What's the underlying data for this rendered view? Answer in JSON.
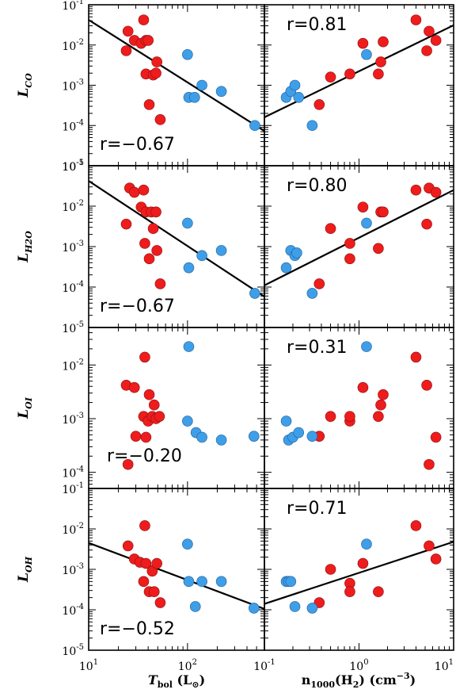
{
  "chart_data": {
    "type": "scatter",
    "layout": "4 rows x 2 columns",
    "colors": {
      "red": "#ee1c1c",
      "blue": "#3f9ee8",
      "line": "#000000"
    },
    "xlabels": {
      "left": {
        "main": "T",
        "sub": "bol",
        "unit": "(L",
        "sun": "⊙",
        "close": ")"
      },
      "right": {
        "main": "n",
        "sub": "1000",
        "mid": "(H",
        "sub2": "2",
        "unit": ") (cm",
        "sup": "−3",
        "close": ")"
      }
    },
    "xaxis": {
      "left": {
        "range": [
          10,
          600
        ],
        "ticks": [
          {
            "value": 10,
            "base": "10",
            "exp": "1"
          },
          {
            "value": 100,
            "base": "10",
            "exp": "2"
          }
        ]
      },
      "right": {
        "range": [
          0.1,
          10
        ],
        "ticks": [
          {
            "value": 0.1,
            "base": "10",
            "exp": "-1"
          },
          {
            "value": 1,
            "base": "10",
            "exp": "0"
          },
          {
            "value": 10,
            "base": "10",
            "exp": "1"
          }
        ]
      }
    },
    "panels": [
      {
        "id": "co",
        "ylabel": {
          "main": "L",
          "sub": "CO"
        },
        "ylim": [
          1e-05,
          0.1
        ],
        "yticks": [
          {
            "value": 0.1,
            "base": "10",
            "exp": "-1"
          },
          {
            "value": 0.01,
            "base": "10",
            "exp": "-2"
          },
          {
            "value": 0.001,
            "base": "10",
            "exp": "-3"
          },
          {
            "value": 0.0001,
            "base": "10",
            "exp": "-4"
          },
          {
            "value": 1e-05,
            "base": "10",
            "exp": "-5"
          }
        ],
        "left": {
          "corr": "r=−0.67",
          "fit": [
            [
              10,
              0.042
            ],
            [
              600,
              7.3e-05
            ]
          ],
          "red": [
            [
              24,
              0.0072
            ],
            [
              25,
              0.022
            ],
            [
              29,
              0.013
            ],
            [
              34,
              0.011
            ],
            [
              36,
              0.042
            ],
            [
              38,
              0.013
            ],
            [
              38,
              0.0019
            ],
            [
              40,
              0.013
            ],
            [
              41,
              0.00033
            ],
            [
              45,
              0.0018
            ],
            [
              48,
              0.002
            ],
            [
              49,
              0.0038
            ],
            [
              53,
              0.00014
            ]
          ],
          "blue": [
            [
              100,
              0.0058
            ],
            [
              103,
              0.0005
            ],
            [
              118,
              0.0005
            ],
            [
              140,
              0.001
            ],
            [
              220,
              0.0007
            ],
            [
              480,
              0.0001
            ]
          ]
        },
        "right": {
          "corr": "r=0.81",
          "fit": [
            [
              0.1,
              0.00016
            ],
            [
              10,
              0.031
            ]
          ],
          "red": [
            [
              0.38,
              0.00033
            ],
            [
              0.5,
              0.0016
            ],
            [
              0.8,
              0.0019
            ],
            [
              1.1,
              0.011
            ],
            [
              1.6,
              0.0019
            ],
            [
              1.7,
              0.0038
            ],
            [
              1.8,
              0.012
            ],
            [
              4.0,
              0.042
            ],
            [
              5.2,
              0.0072
            ],
            [
              5.5,
              0.022
            ],
            [
              6.5,
              0.013
            ]
          ],
          "blue": [
            [
              0.17,
              0.0005
            ],
            [
              0.19,
              0.0007
            ],
            [
              0.21,
              0.001
            ],
            [
              0.23,
              0.0005
            ],
            [
              0.32,
              0.0001
            ],
            [
              1.2,
              0.0058
            ]
          ]
        }
      },
      {
        "id": "h2o",
        "ylabel": {
          "main": "L",
          "sub": "H2O"
        },
        "ylim": [
          1e-05,
          0.1
        ],
        "yticks": [
          {
            "value": 0.1,
            "base": "10",
            "exp": "-1"
          },
          {
            "value": 0.01,
            "base": "10",
            "exp": "-2"
          },
          {
            "value": 0.001,
            "base": "10",
            "exp": "-3"
          },
          {
            "value": 0.0001,
            "base": "10",
            "exp": "-4"
          },
          {
            "value": 1e-05,
            "base": "10",
            "exp": "-5"
          }
        ],
        "left": {
          "corr": "r=−0.67",
          "fit": [
            [
              10,
              0.042
            ],
            [
              600,
              5.8e-05
            ]
          ],
          "red": [
            [
              24,
              0.0036
            ],
            [
              26,
              0.028
            ],
            [
              29,
              0.022
            ],
            [
              34,
              0.0095
            ],
            [
              36,
              0.025
            ],
            [
              37,
              0.0012
            ],
            [
              38,
              0.0072
            ],
            [
              41,
              0.0005
            ],
            [
              43,
              0.0072
            ],
            [
              45,
              0.0028
            ],
            [
              48,
              0.0072
            ],
            [
              49,
              0.0008
            ],
            [
              53,
              0.00012
            ]
          ],
          "blue": [
            [
              100,
              0.0038
            ],
            [
              103,
              0.0003
            ],
            [
              140,
              0.0006
            ],
            [
              220,
              0.0008
            ],
            [
              480,
              7e-05
            ]
          ]
        },
        "right": {
          "corr": "r=0.80",
          "fit": [
            [
              0.1,
              0.00011
            ],
            [
              10,
              0.025
            ]
          ],
          "red": [
            [
              0.38,
              0.00012
            ],
            [
              0.5,
              0.0028
            ],
            [
              0.8,
              0.0012
            ],
            [
              0.8,
              0.0005
            ],
            [
              1.1,
              0.0095
            ],
            [
              1.6,
              0.0009
            ],
            [
              1.7,
              0.0072
            ],
            [
              1.8,
              0.0072
            ],
            [
              4.0,
              0.025
            ],
            [
              5.2,
              0.0036
            ],
            [
              5.5,
              0.028
            ],
            [
              6.5,
              0.022
            ]
          ],
          "blue": [
            [
              0.17,
              0.0003
            ],
            [
              0.19,
              0.0008
            ],
            [
              0.21,
              0.0006
            ],
            [
              0.22,
              0.0007
            ],
            [
              0.32,
              7e-05
            ],
            [
              1.2,
              0.0038
            ]
          ]
        }
      },
      {
        "id": "oi",
        "ylabel": {
          "main": "L",
          "sub": "OI"
        },
        "ylim": [
          5e-05,
          0.05
        ],
        "yticks": [
          {
            "value": 0.01,
            "base": "10",
            "exp": "-2"
          },
          {
            "value": 0.001,
            "base": "10",
            "exp": "-3"
          },
          {
            "value": 0.0001,
            "base": "10",
            "exp": "-4"
          }
        ],
        "left": {
          "corr": "r=−0.20",
          "fit": null,
          "red": [
            [
              25,
              0.00014
            ],
            [
              24,
              0.0042
            ],
            [
              29,
              0.0038
            ],
            [
              30,
              0.00047
            ],
            [
              36,
              0.0011
            ],
            [
              37,
              0.014
            ],
            [
              38,
              0.00045
            ],
            [
              40,
              0.0009
            ],
            [
              41,
              0.0028
            ],
            [
              44,
              0.0011
            ],
            [
              46,
              0.0018
            ],
            [
              48,
              0.001
            ],
            [
              52,
              0.0011
            ]
          ],
          "blue": [
            [
              103,
              0.022
            ],
            [
              100,
              0.0009
            ],
            [
              122,
              0.00055
            ],
            [
              140,
              0.00045
            ],
            [
              220,
              0.0004
            ],
            [
              470,
              0.00047
            ]
          ]
        },
        "right": {
          "corr": "r=0.31",
          "fit": null,
          "red": [
            [
              0.38,
              0.00047
            ],
            [
              0.5,
              0.0011
            ],
            [
              0.8,
              0.0009
            ],
            [
              0.8,
              0.0011
            ],
            [
              1.1,
              0.0038
            ],
            [
              1.6,
              0.0011
            ],
            [
              1.7,
              0.0018
            ],
            [
              1.8,
              0.0028
            ],
            [
              4.0,
              0.014
            ],
            [
              5.2,
              0.0042
            ],
            [
              5.5,
              0.00014
            ],
            [
              6.5,
              0.00045
            ]
          ],
          "blue": [
            [
              0.17,
              0.0009
            ],
            [
              0.18,
              0.0004
            ],
            [
              0.2,
              0.00045
            ],
            [
              0.23,
              0.00055
            ],
            [
              0.32,
              0.00047
            ],
            [
              1.2,
              0.022
            ]
          ]
        }
      },
      {
        "id": "oh",
        "ylabel": {
          "main": "L",
          "sub": "OH"
        },
        "ylim": [
          1e-05,
          0.1
        ],
        "yticks": [
          {
            "value": 0.1,
            "base": "10",
            "exp": "-1"
          },
          {
            "value": 0.01,
            "base": "10",
            "exp": "-2"
          },
          {
            "value": 0.001,
            "base": "10",
            "exp": "-3"
          },
          {
            "value": 0.0001,
            "base": "10",
            "exp": "-4"
          },
          {
            "value": 1e-05,
            "base": "10",
            "exp": "-5"
          }
        ],
        "left": {
          "corr": "r=−0.52",
          "fit": [
            [
              10,
              0.0045
            ],
            [
              600,
              0.000105
            ]
          ],
          "red": [
            [
              25,
              0.0038
            ],
            [
              29,
              0.0018
            ],
            [
              33,
              0.0015
            ],
            [
              36,
              0.0005
            ],
            [
              37,
              0.012
            ],
            [
              38,
              0.0014
            ],
            [
              41,
              0.00028
            ],
            [
              44,
              0.0009
            ],
            [
              46,
              0.00028
            ],
            [
              49,
              0.0014
            ],
            [
              53,
              0.00015
            ]
          ],
          "blue": [
            [
              100,
              0.0042
            ],
            [
              103,
              0.0005
            ],
            [
              120,
              0.00012
            ],
            [
              140,
              0.0005
            ],
            [
              220,
              0.0005
            ],
            [
              470,
              0.00011
            ]
          ]
        },
        "right": {
          "corr": "r=0.71",
          "fit": [
            [
              0.1,
              0.00014
            ],
            [
              10,
              0.0048
            ]
          ],
          "red": [
            [
              0.38,
              0.00015
            ],
            [
              0.5,
              0.001
            ],
            [
              0.8,
              0.00045
            ],
            [
              0.8,
              0.00028
            ],
            [
              1.1,
              0.0014
            ],
            [
              1.6,
              0.00028
            ],
            [
              4.0,
              0.012
            ],
            [
              5.5,
              0.0038
            ],
            [
              6.5,
              0.0018
            ]
          ],
          "blue": [
            [
              0.17,
              0.0005
            ],
            [
              0.18,
              0.0005
            ],
            [
              0.19,
              0.0005
            ],
            [
              0.21,
              0.00012
            ],
            [
              0.32,
              0.00011
            ],
            [
              1.2,
              0.0042
            ]
          ]
        }
      }
    ]
  }
}
